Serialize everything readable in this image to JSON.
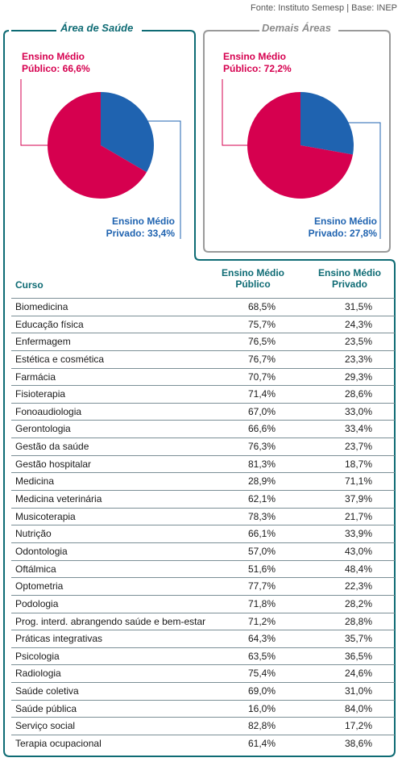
{
  "source": "Fonte: Instituto Semesp | Base: INEP",
  "colors": {
    "publico": "#d6004f",
    "privado": "#1f63b0",
    "teal": "#0e6b74",
    "gray": "#8c8c8c"
  },
  "chart_data": [
    {
      "type": "pie",
      "title": "Área de Saúde",
      "labels": [
        "Ensino Médio Público: 66,6%",
        "Ensino Médio Privado: 33,4%"
      ],
      "values": [
        66.6,
        33.4
      ]
    },
    {
      "type": "pie",
      "title": "Demais Áreas",
      "labels": [
        "Ensino Médio Público: 72,2%",
        "Ensino Médio Privado: 27,8%"
      ],
      "values": [
        72.2,
        27.8
      ]
    },
    {
      "type": "table",
      "columns": [
        "Curso",
        "Ensino Médio Público",
        "Ensino Médio Privado"
      ],
      "rows": [
        [
          "Biomedicina",
          "68,5%",
          "31,5%"
        ],
        [
          "Educação física",
          "75,7%",
          "24,3%"
        ],
        [
          "Enfermagem",
          "76,5%",
          "23,5%"
        ],
        [
          "Estética e cosmética",
          "76,7%",
          "23,3%"
        ],
        [
          "Farmácia",
          "70,7%",
          "29,3%"
        ],
        [
          "Fisioterapia",
          "71,4%",
          "28,6%"
        ],
        [
          "Fonoaudiologia",
          "67,0%",
          "33,0%"
        ],
        [
          "Gerontologia",
          "66,6%",
          "33,4%"
        ],
        [
          "Gestão da saúde",
          "76,3%",
          "23,7%"
        ],
        [
          "Gestão hospitalar",
          "81,3%",
          "18,7%"
        ],
        [
          "Medicina",
          "28,9%",
          "71,1%"
        ],
        [
          "Medicina veterinária",
          "62,1%",
          "37,9%"
        ],
        [
          "Musicoterapia",
          "78,3%",
          "21,7%"
        ],
        [
          "Nutrição",
          "66,1%",
          "33,9%"
        ],
        [
          "Odontologia",
          "57,0%",
          "43,0%"
        ],
        [
          "Oftálmica",
          "51,6%",
          "48,4%"
        ],
        [
          "Optometria",
          "77,7%",
          "22,3%"
        ],
        [
          "Podologia",
          "71,8%",
          "28,2%"
        ],
        [
          "Prog. interd. abrangendo saúde e bem-estar",
          "71,2%",
          "28,8%"
        ],
        [
          "Práticas integrativas",
          "64,3%",
          "35,7%"
        ],
        [
          "Psicologia",
          "63,5%",
          "36,5%"
        ],
        [
          "Radiologia",
          "75,4%",
          "24,6%"
        ],
        [
          "Saúde coletiva",
          "69,0%",
          "31,0%"
        ],
        [
          "Saúde pública",
          "16,0%",
          "84,0%"
        ],
        [
          "Serviço social",
          "82,8%",
          "17,2%"
        ],
        [
          "Terapia ocupacional",
          "61,4%",
          "38,6%"
        ]
      ]
    }
  ],
  "saude": {
    "title": "Área de Saúde",
    "pub_line1": "Ensino Médio",
    "pub_line2": "Público: 66,6%",
    "priv_line1": "Ensino Médio",
    "priv_line2": "Privado: 33,4%"
  },
  "demais": {
    "title": "Demais Áreas",
    "pub_line1": "Ensino Médio",
    "pub_line2": "Público: 72,2%",
    "priv_line1": "Ensino Médio",
    "priv_line2": "Privado: 27,8%"
  },
  "table_header": {
    "curso": "Curso",
    "pub_line1": "Ensino Médio",
    "pub_line2": "Público",
    "priv_line1": "Ensino Médio",
    "priv_line2": "Privado"
  }
}
